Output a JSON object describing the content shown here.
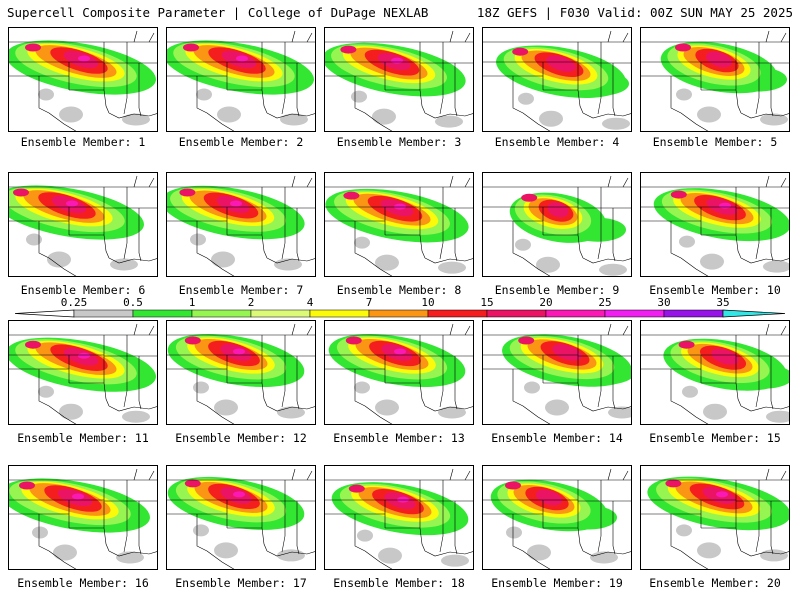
{
  "header": {
    "left": "Supercell Composite Parameter | College of DuPage NEXLAB",
    "right": "18Z GEFS | F030 Valid: 00Z SUN MAY 25 2025"
  },
  "panel_label_prefix": "Ensemble Member: ",
  "panels": [
    {
      "member": "1",
      "label": "Ensemble Member: 1",
      "center": [
        0.48,
        0.3
      ],
      "intensity": 1.0
    },
    {
      "member": "2",
      "label": "Ensemble Member: 2",
      "center": [
        0.48,
        0.3
      ],
      "intensity": 1.0
    },
    {
      "member": "3",
      "label": "Ensemble Member: 3",
      "center": [
        0.46,
        0.32
      ],
      "intensity": 0.95
    },
    {
      "member": "4",
      "label": "Ensemble Member: 4",
      "center": [
        0.52,
        0.34
      ],
      "intensity": 0.85
    },
    {
      "member": "5",
      "label": "Ensemble Member: 5",
      "center": [
        0.52,
        0.3
      ],
      "intensity": 0.75
    },
    {
      "member": "6",
      "label": "Ensemble Member: 6",
      "center": [
        0.4,
        0.3
      ],
      "intensity": 1.0
    },
    {
      "member": "7",
      "label": "Ensemble Member: 7",
      "center": [
        0.44,
        0.3
      ],
      "intensity": 0.95
    },
    {
      "member": "8",
      "label": "Ensemble Member: 8",
      "center": [
        0.48,
        0.33
      ],
      "intensity": 0.95
    },
    {
      "member": "9",
      "label": "Ensemble Member: 9",
      "center": [
        0.5,
        0.35
      ],
      "intensity": 0.6
    },
    {
      "member": "10",
      "label": "Ensemble Member: 10",
      "center": [
        0.54,
        0.32
      ],
      "intensity": 0.9
    },
    {
      "member": "11",
      "label": "Ensemble Member: 11",
      "center": [
        0.48,
        0.34
      ],
      "intensity": 1.0
    },
    {
      "member": "12",
      "label": "Ensemble Member: 12",
      "center": [
        0.46,
        0.3
      ],
      "intensity": 0.9
    },
    {
      "member": "13",
      "label": "Ensemble Member: 13",
      "center": [
        0.48,
        0.3
      ],
      "intensity": 0.9
    },
    {
      "member": "14",
      "label": "Ensemble Member: 14",
      "center": [
        0.56,
        0.3
      ],
      "intensity": 0.85
    },
    {
      "member": "15",
      "label": "Ensemble Member: 15",
      "center": [
        0.56,
        0.34
      ],
      "intensity": 0.8
    },
    {
      "member": "16",
      "label": "Ensemble Member: 16",
      "center": [
        0.44,
        0.3
      ],
      "intensity": 1.0
    },
    {
      "member": "17",
      "label": "Ensemble Member: 17",
      "center": [
        0.46,
        0.28
      ],
      "intensity": 0.9
    },
    {
      "member": "18",
      "label": "Ensemble Member: 18",
      "center": [
        0.5,
        0.33
      ],
      "intensity": 0.9
    },
    {
      "member": "19",
      "label": "Ensemble Member: 19",
      "center": [
        0.44,
        0.3
      ],
      "intensity": 0.75
    },
    {
      "member": "20",
      "label": "Ensemble Member: 20",
      "center": [
        0.52,
        0.28
      ],
      "intensity": 0.95
    }
  ],
  "colorbar": {
    "labels": [
      "0.25",
      "0.5",
      "1",
      "2",
      "4",
      "7",
      "10",
      "15",
      "20",
      "25",
      "30",
      "35"
    ],
    "colors": [
      "#c8c8c8",
      "#32e632",
      "#96f550",
      "#dcfa78",
      "#fafa0a",
      "#fa9614",
      "#f51e1e",
      "#eb1464",
      "#fa19b4",
      "#f01ef0",
      "#9614e6",
      "#b46ee6",
      "#32e6e6"
    ]
  }
}
